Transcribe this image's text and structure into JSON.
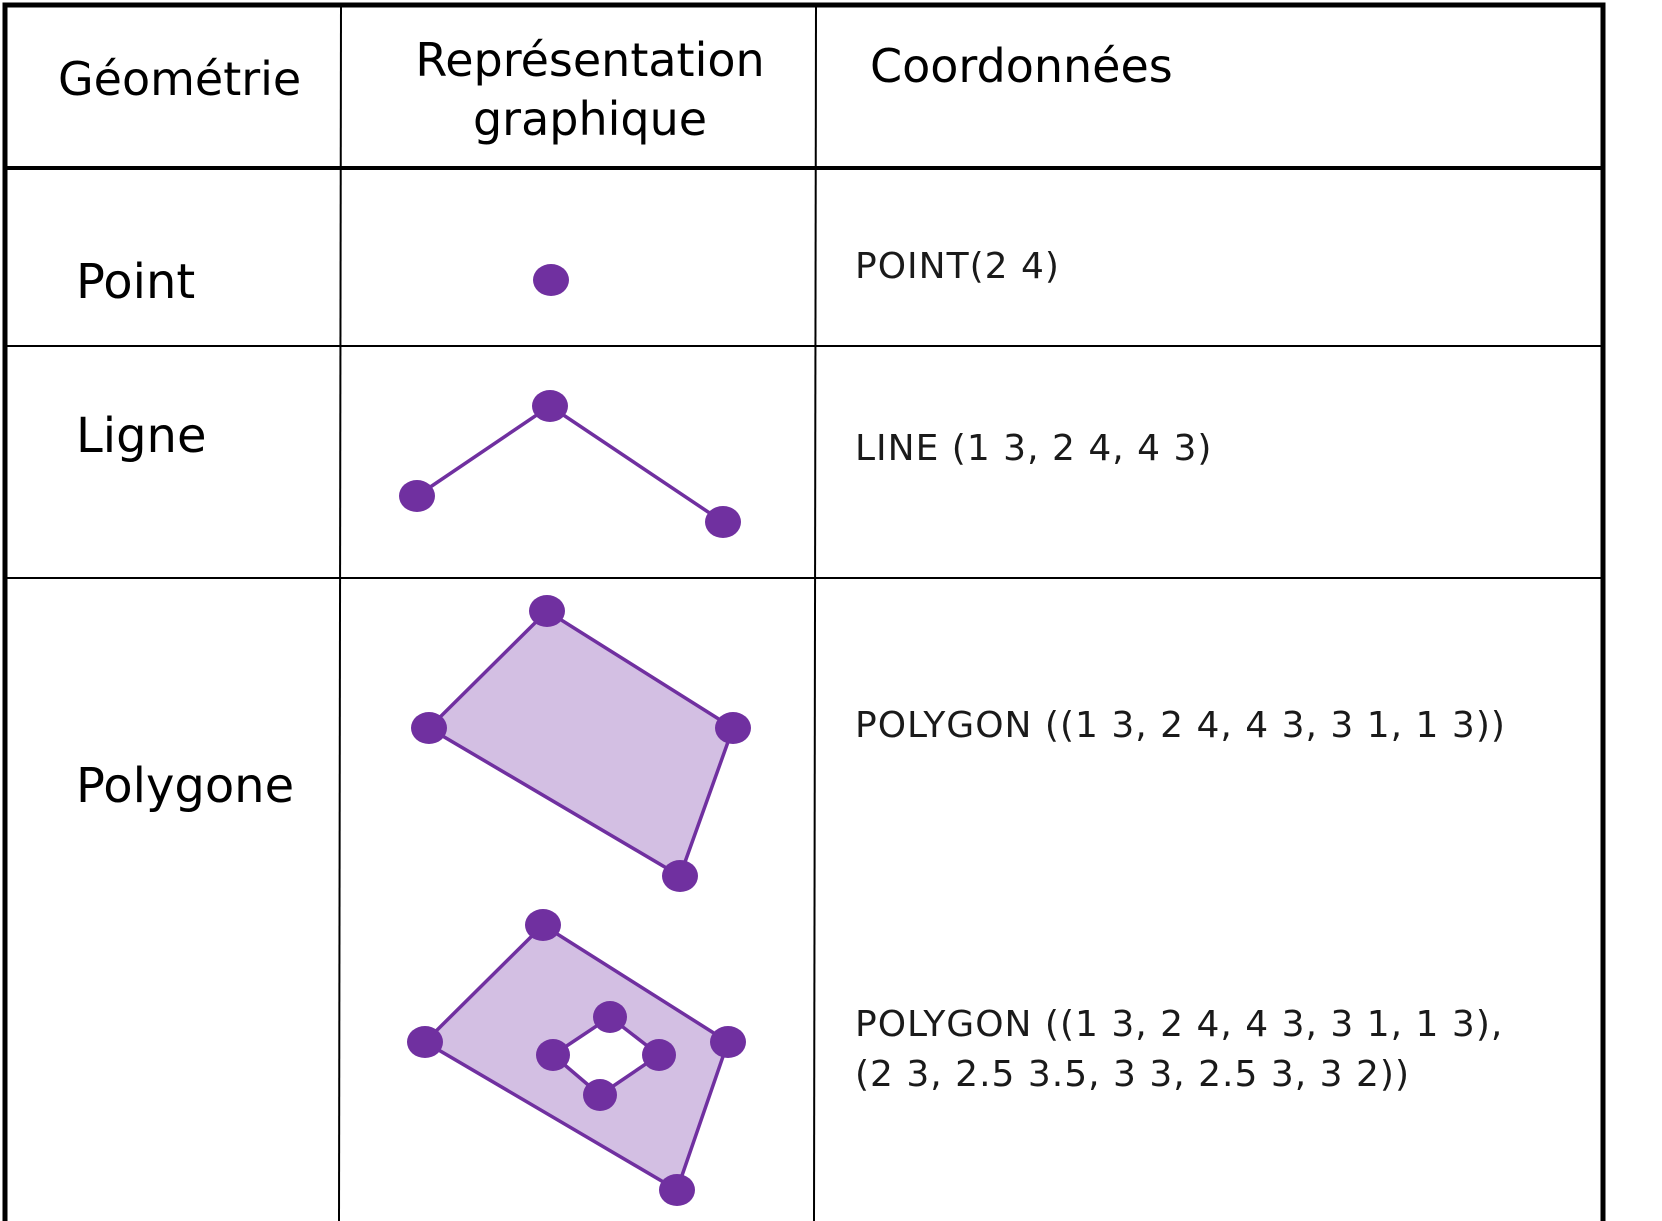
{
  "headers": {
    "geometry": "Géométrie",
    "representation_line1": "Représentation",
    "representation_line2": "graphique",
    "coordinates": "Coordonnées"
  },
  "rows": [
    {
      "geometry": "Point",
      "coordinates": [
        "POINT(2 4)"
      ]
    },
    {
      "geometry": "Ligne",
      "coordinates": [
        "LINE (1 3, 2 4, 4 3)"
      ]
    },
    {
      "geometry": "Polygone",
      "coordinates": [
        "POLYGON ((1 3, 2 4, 4 3, 3 1, 1 3))",
        "POLYGON ((1 3, 2 4, 4 3, 3 1, 1 3),",
        "(2 3, 2.5 3.5, 3 3, 2.5 3, 3 2))"
      ]
    }
  ],
  "colors": {
    "vertex": "#7030a0",
    "edge": "#7030a0",
    "fill": "#d3bfe3",
    "border": "#000000"
  }
}
